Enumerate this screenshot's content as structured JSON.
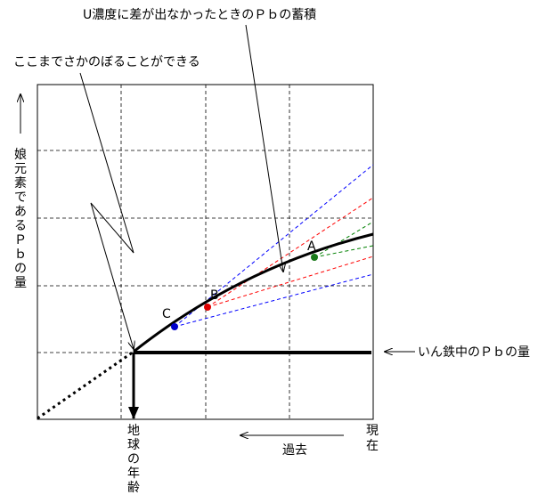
{
  "annotations": {
    "top_label": "U濃度に差が出なかったときのＰｂの蓄積",
    "left_label": "ここまでさかのぼることができる",
    "iron_label": "いん鉄中のＰｂの量"
  },
  "axis": {
    "y_label_chars": [
      "娘",
      "元",
      "素",
      "で",
      "あ",
      "る",
      "Ｐ",
      "ｂ",
      "の",
      "量"
    ],
    "x_left_chars": [
      "地",
      "球",
      "の",
      "年",
      "齢"
    ],
    "x_right_chars": [
      "現",
      "在"
    ],
    "past_label": "過去"
  },
  "points": {
    "a": "A",
    "b": "B",
    "c": "C"
  },
  "colors": {
    "a": "#1a7a1a",
    "b": "#dd0000",
    "c": "#0000cc"
  }
}
